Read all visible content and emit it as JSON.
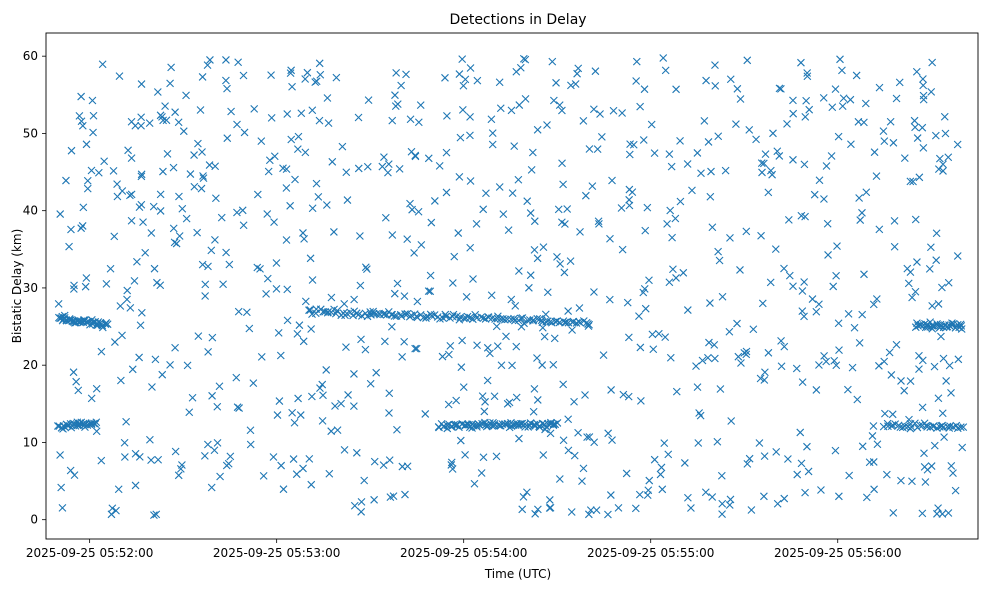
{
  "chart_data": {
    "type": "scatter",
    "title": "Detections in Delay",
    "xlabel": "Time (UTC)",
    "ylabel": "Bistatic Delay (km)",
    "marker": "x",
    "color": "#1f77b4",
    "grid": false,
    "legend": "none",
    "xlim": [
      "2025-09-25 05:51:46",
      "2025-09-25 05:56:45"
    ],
    "ylim": [
      -2.5,
      63
    ],
    "x_ticks": [
      "2025-09-25 05:52:00",
      "2025-09-25 05:53:00",
      "2025-09-25 05:54:00",
      "2025-09-25 05:55:00",
      "2025-09-25 05:56:00"
    ],
    "y_ticks": [
      0,
      10,
      20,
      30,
      40,
      50,
      60
    ],
    "time_range": [
      "2025-09-25 05:51:50",
      "2025-09-25 05:56:40"
    ],
    "clusters": [
      {
        "label": "track near 25.5 km, start",
        "t": [
          "2025-09-25 05:51:50",
          "2025-09-25 05:52:06"
        ],
        "delay": [
          26.0,
          25.2
        ],
        "points": 45
      },
      {
        "label": "track near 12 km, start",
        "t": [
          "2025-09-25 05:51:50",
          "2025-09-25 05:52:02"
        ],
        "delay": [
          12.0,
          12.5
        ],
        "points": 30
      },
      {
        "label": "track near 26 km, middle",
        "t": [
          "2025-09-25 05:53:10",
          "2025-09-25 05:54:40"
        ],
        "delay": [
          27.0,
          25.5
        ],
        "points": 120
      },
      {
        "label": "track near 12 km, middle",
        "t": [
          "2025-09-25 05:53:52",
          "2025-09-25 05:54:30"
        ],
        "delay": [
          12.2,
          12.3
        ],
        "points": 80
      },
      {
        "label": "track near 25 km, end",
        "t": [
          "2025-09-25 05:56:25",
          "2025-09-25 05:56:40"
        ],
        "delay": [
          25.2,
          25.1
        ],
        "points": 35
      },
      {
        "label": "track near 12 km, end",
        "t": [
          "2025-09-25 05:56:15",
          "2025-09-25 05:56:40"
        ],
        "delay": [
          12.3,
          12.0
        ],
        "points": 35
      },
      {
        "label": "scattered detections",
        "t": [
          "2025-09-25 05:51:50",
          "2025-09-25 05:56:40"
        ],
        "delay": [
          0.5,
          59.8
        ],
        "points": 900
      }
    ]
  }
}
